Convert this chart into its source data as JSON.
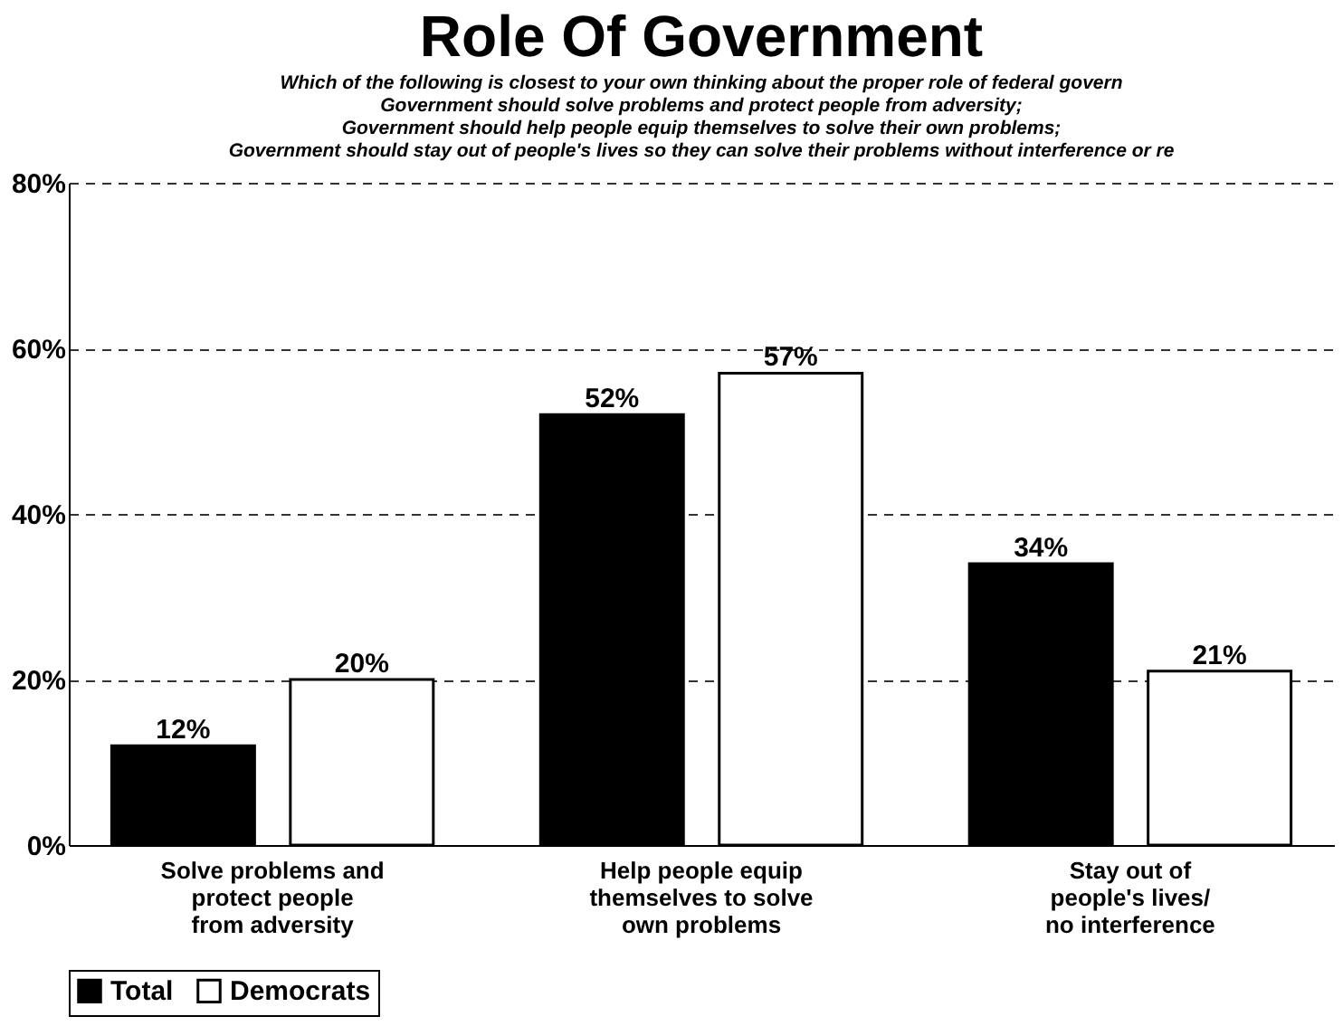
{
  "chart_data": {
    "type": "bar",
    "title": "Role Of Government",
    "subtitle": "Which of the following is closest to your own thinking about the proper role of federal govern\nGovernment should solve problems and protect people from adversity;\nGovernment should help people equip themselves to solve their own problems;\nGovernment should stay out of people's lives so they can solve their problems without interference or re",
    "categories": [
      "Solve problems and\nprotect people\nfrom adversity",
      "Help people equip\nthemselves to solve\nown problems",
      "Stay out of\npeople's lives/\nno interference"
    ],
    "series": [
      {
        "name": "Total",
        "color": "#000000",
        "values": [
          12,
          52,
          34
        ],
        "value_labels": [
          "12%",
          "52%",
          "34%"
        ]
      },
      {
        "name": "Democrats",
        "color": "#ffffff",
        "values": [
          20,
          57,
          21
        ],
        "value_labels": [
          "20%",
          "57%",
          "21%"
        ]
      }
    ],
    "ylim": [
      0,
      80
    ],
    "yticks": [
      {
        "value": 0,
        "label": "0%"
      },
      {
        "value": 20,
        "label": "20%"
      },
      {
        "value": 40,
        "label": "40%"
      },
      {
        "value": 60,
        "label": "60%"
      },
      {
        "value": 80,
        "label": "80%"
      }
    ],
    "grid": "y",
    "legend": "bottom"
  }
}
